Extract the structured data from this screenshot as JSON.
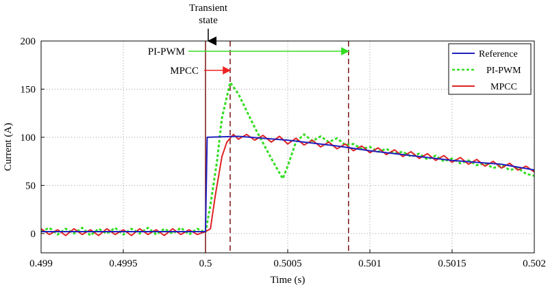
{
  "chart_data": {
    "type": "line",
    "title": "",
    "xlabel": "Time (s)",
    "ylabel": "Current (A)",
    "xlim": [
      0.499,
      0.502
    ],
    "ylim": [
      -20,
      200
    ],
    "grid": true,
    "legend_position": "top-right",
    "x_ticks": [
      "0.499",
      "0.4995",
      "0.5",
      "0.5005",
      "0.501",
      "0.5015",
      "0.502"
    ],
    "x_tick_values": [
      0.499,
      0.4995,
      0.5,
      0.5005,
      0.501,
      0.5015,
      0.502
    ],
    "y_ticks": [
      "0",
      "50",
      "100",
      "150",
      "200"
    ],
    "y_tick_values": [
      0,
      50,
      100,
      150,
      200
    ],
    "series": [
      {
        "name": "Reference",
        "color": "#1f1fbf",
        "style": "solid",
        "points": [
          [
            0.499,
            2
          ],
          [
            0.49999,
            2
          ],
          [
            0.5,
            2
          ],
          [
            0.50001,
            100
          ],
          [
            0.5002,
            101
          ],
          [
            0.5005,
            97
          ],
          [
            0.5008,
            91
          ],
          [
            0.501,
            86
          ],
          [
            0.5012,
            82
          ],
          [
            0.5015,
            76
          ],
          [
            0.5018,
            72
          ],
          [
            0.502,
            66
          ]
        ]
      },
      {
        "name": "PI-PWM",
        "color": "#33dd22",
        "style": "dashed",
        "points": [
          [
            0.499,
            2
          ],
          [
            0.49905,
            6
          ],
          [
            0.4991,
            -1
          ],
          [
            0.49915,
            5
          ],
          [
            0.4992,
            0
          ],
          [
            0.49925,
            6
          ],
          [
            0.4993,
            -2
          ],
          [
            0.49935,
            5
          ],
          [
            0.4994,
            0
          ],
          [
            0.49945,
            6
          ],
          [
            0.4995,
            -1
          ],
          [
            0.49955,
            5
          ],
          [
            0.4996,
            0
          ],
          [
            0.49965,
            6
          ],
          [
            0.4997,
            -1
          ],
          [
            0.49975,
            5
          ],
          [
            0.4998,
            0
          ],
          [
            0.49985,
            6
          ],
          [
            0.4999,
            -1
          ],
          [
            0.49995,
            5
          ],
          [
            0.5,
            1
          ],
          [
            0.50003,
            30
          ],
          [
            0.50007,
            75
          ],
          [
            0.5001,
            120
          ],
          [
            0.50015,
            157
          ],
          [
            0.5002,
            145
          ],
          [
            0.5003,
            110
          ],
          [
            0.5004,
            78
          ],
          [
            0.50047,
            57
          ],
          [
            0.5005,
            70
          ],
          [
            0.50055,
            95
          ],
          [
            0.5006,
            103
          ],
          [
            0.50065,
            96
          ],
          [
            0.5007,
            101
          ],
          [
            0.50075,
            95
          ],
          [
            0.5008,
            99
          ],
          [
            0.50085,
            92
          ],
          [
            0.5009,
            93
          ],
          [
            0.50095,
            88
          ],
          [
            0.501,
            90
          ],
          [
            0.50105,
            85
          ],
          [
            0.5011,
            88
          ],
          [
            0.50115,
            83
          ],
          [
            0.5012,
            85
          ],
          [
            0.50125,
            80
          ],
          [
            0.5013,
            83
          ],
          [
            0.50135,
            77
          ],
          [
            0.5014,
            81
          ],
          [
            0.50145,
            75
          ],
          [
            0.5015,
            78
          ],
          [
            0.50155,
            73
          ],
          [
            0.5016,
            76
          ],
          [
            0.50165,
            71
          ],
          [
            0.5017,
            73
          ],
          [
            0.50175,
            68
          ],
          [
            0.5018,
            71
          ],
          [
            0.50185,
            66
          ],
          [
            0.5019,
            68
          ],
          [
            0.50195,
            62
          ],
          [
            0.502,
            60
          ]
        ]
      },
      {
        "name": "MPCC",
        "color": "#dd2222",
        "style": "solid",
        "points": [
          [
            0.499,
            5
          ],
          [
            0.49905,
            -1
          ],
          [
            0.4991,
            4
          ],
          [
            0.49915,
            -2
          ],
          [
            0.4992,
            5
          ],
          [
            0.49925,
            -1
          ],
          [
            0.4993,
            4
          ],
          [
            0.49935,
            -2
          ],
          [
            0.4994,
            5
          ],
          [
            0.49945,
            -1
          ],
          [
            0.4995,
            4
          ],
          [
            0.49955,
            -2
          ],
          [
            0.4996,
            5
          ],
          [
            0.49965,
            -1
          ],
          [
            0.4997,
            4
          ],
          [
            0.49975,
            -2
          ],
          [
            0.4998,
            5
          ],
          [
            0.49985,
            -1
          ],
          [
            0.4999,
            4
          ],
          [
            0.49995,
            -1
          ],
          [
            0.5,
            2
          ],
          [
            0.50003,
            5
          ],
          [
            0.50006,
            40
          ],
          [
            0.5001,
            80
          ],
          [
            0.50013,
            95
          ],
          [
            0.50017,
            103
          ],
          [
            0.5002,
            98
          ],
          [
            0.50025,
            103
          ],
          [
            0.5003,
            97
          ],
          [
            0.50035,
            102
          ],
          [
            0.5004,
            95
          ],
          [
            0.50045,
            101
          ],
          [
            0.5005,
            93
          ],
          [
            0.50055,
            99
          ],
          [
            0.5006,
            92
          ],
          [
            0.50065,
            97
          ],
          [
            0.5007,
            90
          ],
          [
            0.50075,
            95
          ],
          [
            0.5008,
            88
          ],
          [
            0.50085,
            93
          ],
          [
            0.5009,
            86
          ],
          [
            0.50095,
            91
          ],
          [
            0.501,
            84
          ],
          [
            0.50105,
            89
          ],
          [
            0.5011,
            82
          ],
          [
            0.50115,
            87
          ],
          [
            0.5012,
            80
          ],
          [
            0.50125,
            85
          ],
          [
            0.5013,
            78
          ],
          [
            0.50135,
            83
          ],
          [
            0.5014,
            76
          ],
          [
            0.50145,
            81
          ],
          [
            0.5015,
            74
          ],
          [
            0.50155,
            79
          ],
          [
            0.5016,
            72
          ],
          [
            0.50165,
            77
          ],
          [
            0.5017,
            70
          ],
          [
            0.50175,
            75
          ],
          [
            0.5018,
            68
          ],
          [
            0.50185,
            73
          ],
          [
            0.5019,
            66
          ],
          [
            0.50195,
            70
          ],
          [
            0.502,
            64
          ]
        ]
      }
    ],
    "annotations": {
      "transient_label_line1": "Transient",
      "transient_label_line2": "state",
      "transient_color": "#dd2222",
      "pi_pwm_label": "PI-PWM",
      "pi_pwm_arrow_color": "#33dd22",
      "pi_pwm_range": [
        0.50015,
        0.50087
      ],
      "mpcc_label": "MPCC",
      "mpcc_arrow_color": "#ee2222",
      "mpcc_range": [
        0.50004,
        0.50015
      ],
      "transient_start": 0.5,
      "marker_lines": [
        0.50015,
        0.50087
      ],
      "marker_color": "#7a1010"
    }
  }
}
